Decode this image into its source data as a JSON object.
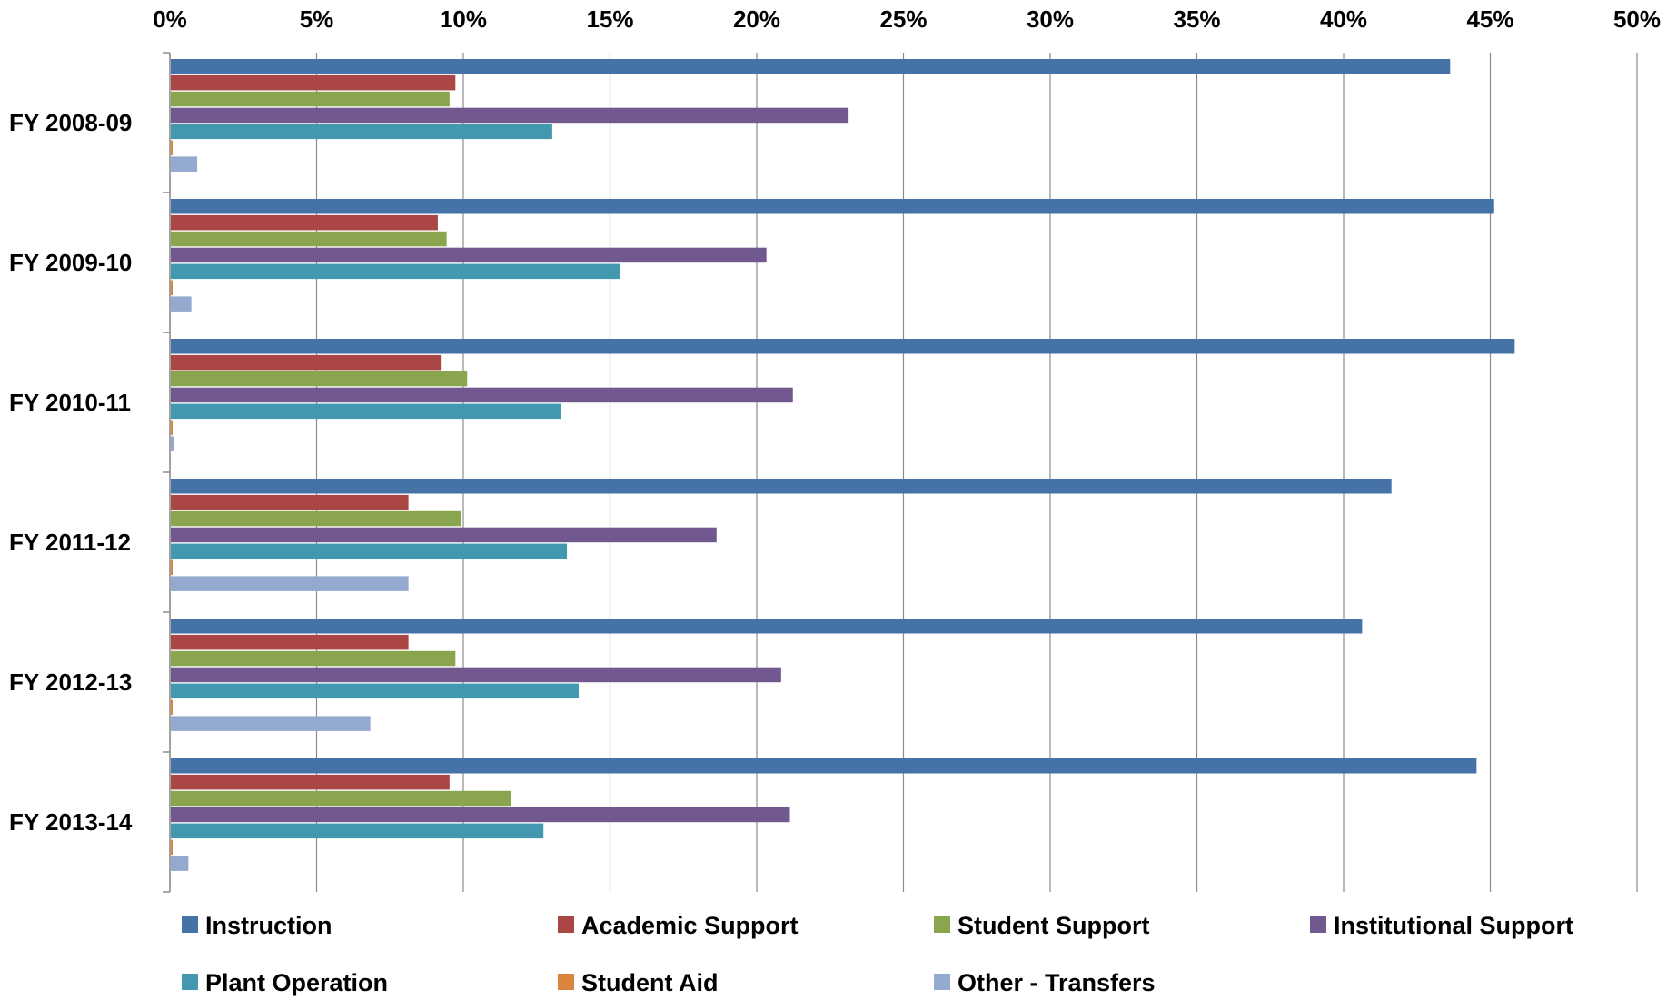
{
  "chart_data": {
    "type": "bar",
    "orientation": "horizontal",
    "title": "",
    "xlabel": "",
    "ylabel": "",
    "xlim": [
      0,
      50
    ],
    "x_ticks": [
      "0%",
      "5%",
      "10%",
      "15%",
      "20%",
      "25%",
      "30%",
      "35%",
      "40%",
      "45%",
      "50%"
    ],
    "grid": true,
    "legend_position": "bottom",
    "categories": [
      "FY 2008-09",
      "FY 2009-10",
      "FY 2010-11",
      "FY 2011-12",
      "FY 2012-13",
      "FY 2013-14"
    ],
    "series": [
      {
        "name": "Instruction",
        "color": "#4572A7",
        "values": [
          43.6,
          45.1,
          45.8,
          41.6,
          40.6,
          44.5
        ]
      },
      {
        "name": "Academic Support",
        "color": "#AA4643",
        "values": [
          9.7,
          9.1,
          9.2,
          8.1,
          8.1,
          9.5
        ]
      },
      {
        "name": "Student Support",
        "color": "#89A54E",
        "values": [
          9.5,
          9.4,
          10.1,
          9.9,
          9.7,
          11.6
        ]
      },
      {
        "name": "Institutional Support",
        "color": "#71588F",
        "values": [
          23.1,
          20.3,
          21.2,
          18.6,
          20.8,
          21.1
        ]
      },
      {
        "name": "Plant Operation",
        "color": "#4198AF",
        "values": [
          13.0,
          15.3,
          13.3,
          13.5,
          13.9,
          12.7
        ]
      },
      {
        "name": "Student Aid",
        "color": "#DB843D",
        "values": [
          0.05,
          0.05,
          0.05,
          0.05,
          0.05,
          0.05
        ]
      },
      {
        "name": "Other - Transfers",
        "color": "#93A9CF",
        "values": [
          0.9,
          0.7,
          0.1,
          8.1,
          6.8,
          0.6
        ]
      }
    ]
  }
}
